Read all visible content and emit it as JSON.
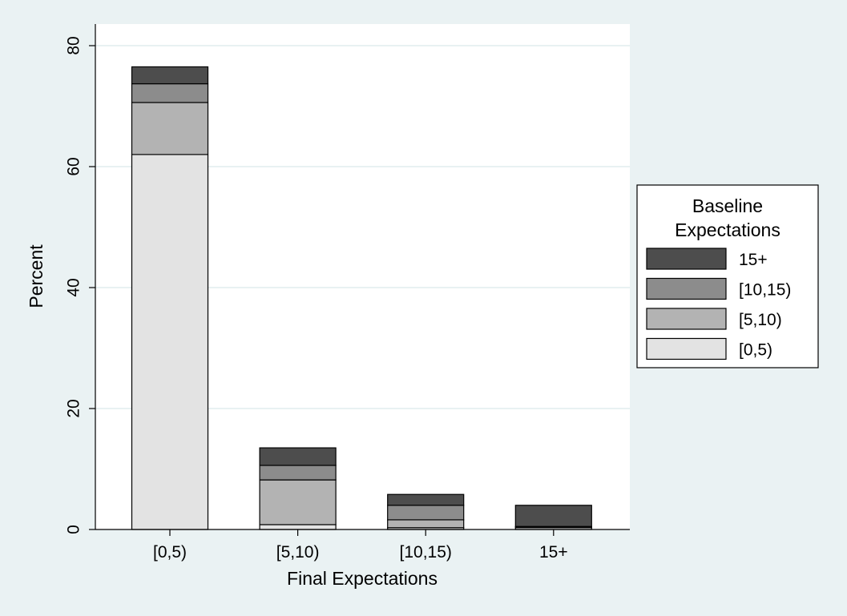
{
  "chart_data": {
    "type": "bar",
    "stacked": true,
    "categories": [
      "[0,5)",
      "[5,10)",
      "[10,15)",
      "15+"
    ],
    "series": [
      {
        "name": "[0,5)",
        "color": "#e3e3e3",
        "values": [
          62.0,
          0.8,
          0.3,
          0.3
        ]
      },
      {
        "name": "[5,10)",
        "color": "#b3b3b3",
        "values": [
          8.6,
          7.4,
          1.3,
          0.1
        ]
      },
      {
        "name": "[10,15)",
        "color": "#8c8c8c",
        "values": [
          3.1,
          2.4,
          2.4,
          0.1
        ]
      },
      {
        "name": "15+",
        "color": "#4d4d4d",
        "values": [
          2.8,
          2.9,
          1.8,
          3.5
        ]
      }
    ],
    "xlabel": "Final Expectations",
    "ylabel": "Percent",
    "ylim": [
      0,
      80
    ],
    "yticks": [
      0,
      20,
      40,
      60,
      80
    ],
    "grid": true,
    "legend": {
      "title_lines": [
        "Baseline",
        "Expectations"
      ],
      "placement": "right",
      "order": [
        "15+",
        "[10,15)",
        "[5,10)",
        "[0,5)"
      ]
    },
    "colors": {
      "background": "#eaf2f3",
      "plot_background": "#ffffff",
      "gridline": "#e8f1f2",
      "bar_outline": "#000000"
    }
  }
}
